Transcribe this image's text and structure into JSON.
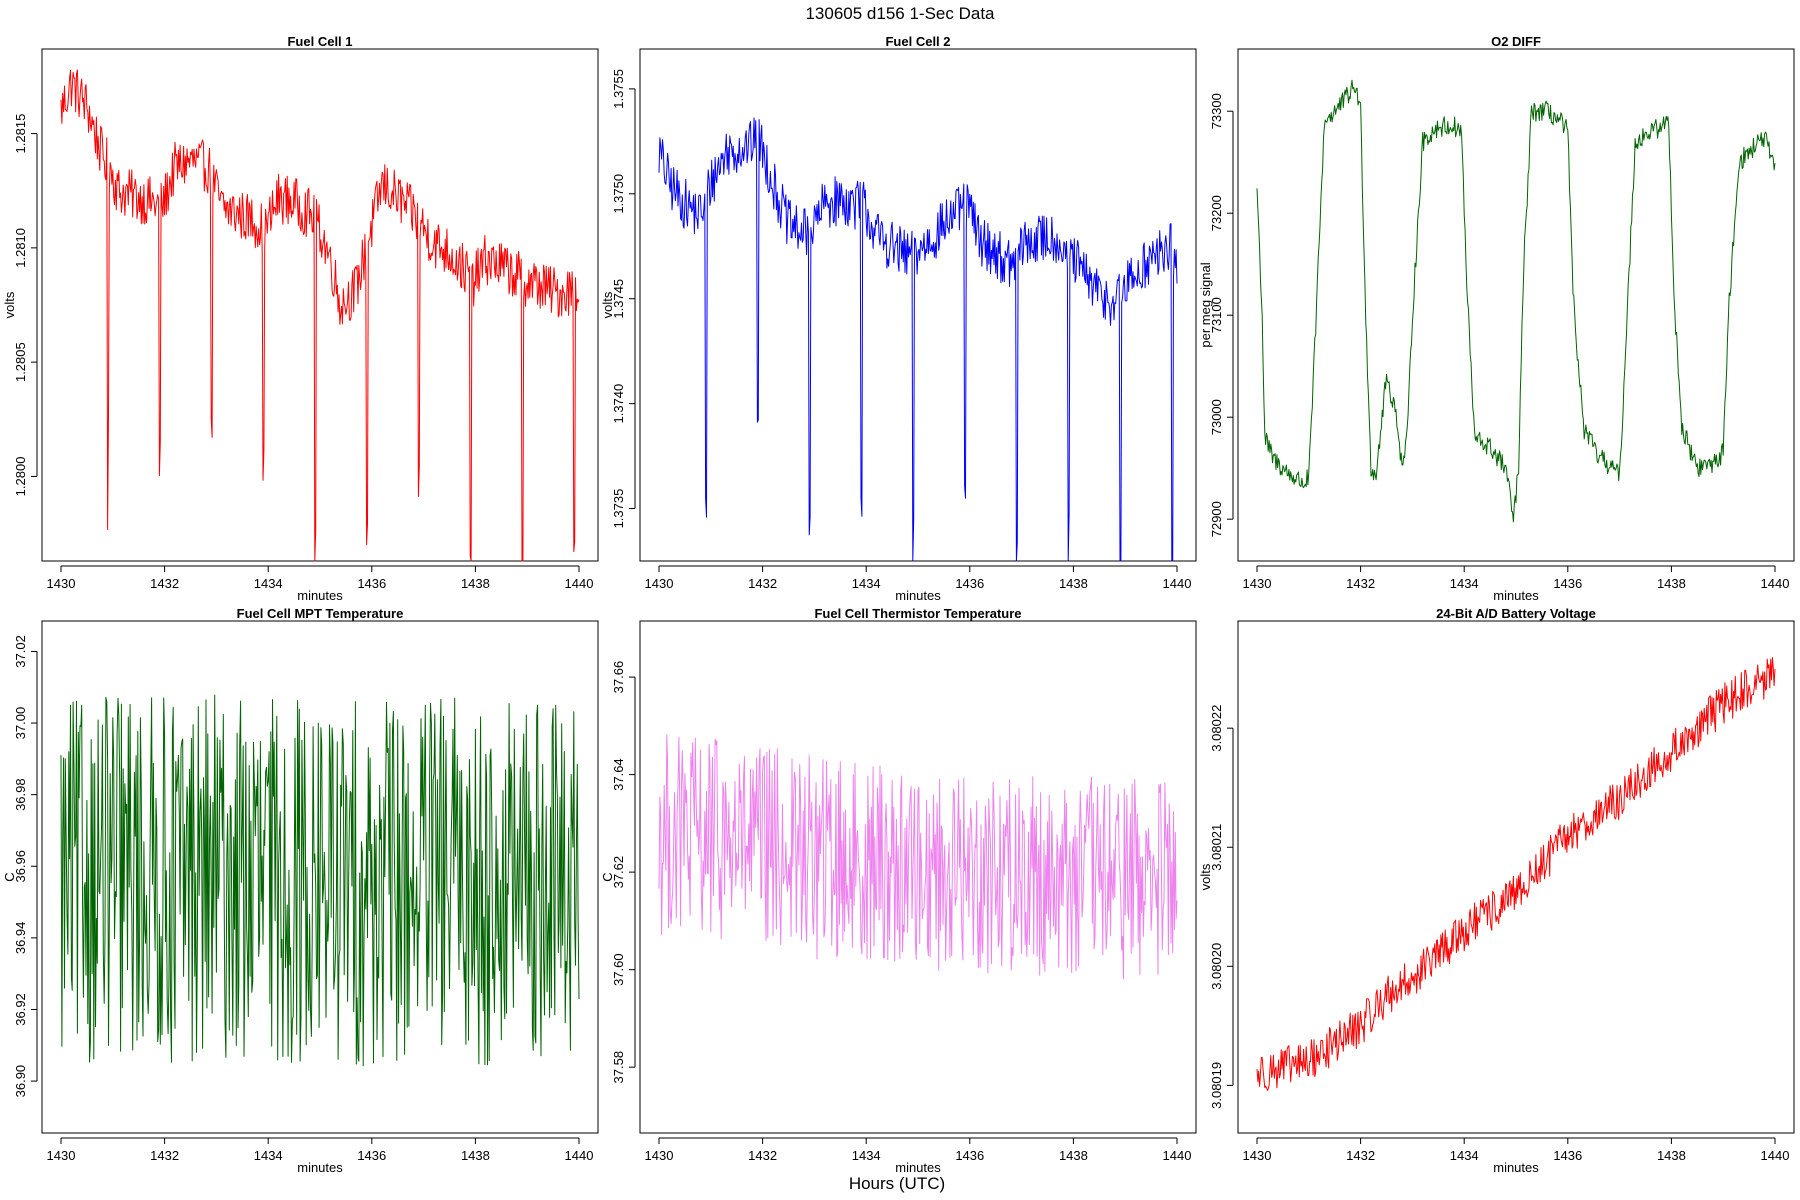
{
  "figure": {
    "title": "130605   d156   1-Sec Data",
    "xlabel": "Hours (UTC)"
  },
  "chart_data": [
    {
      "type": "line",
      "title": "Fuel Cell 1",
      "xlabel": "minutes",
      "ylabel": "volts",
      "color": "#ff0000",
      "xlim": [
        1430,
        1440
      ],
      "ylim": [
        1.27963,
        1.28187
      ],
      "xticks": [
        1430,
        1432,
        1434,
        1436,
        1438,
        1440
      ],
      "xtick_labels": [
        "1430",
        "1432",
        "1434",
        "1436",
        "1438",
        "1440"
      ],
      "yticks": [
        1.28,
        1.2805,
        1.281,
        1.2815
      ],
      "ytick_labels": [
        "1.2800",
        "1.2805",
        "1.2810",
        "1.2815"
      ],
      "series": [
        {
          "x": [
            1430,
            1430.2,
            1430.5,
            1430.8,
            1430.95,
            1431.1,
            1431.5,
            1431.75,
            1431.95,
            1432.2,
            1432.5,
            1432.85,
            1433.1,
            1433.4,
            1433.7,
            1433.95,
            1434.2,
            1434.5,
            1434.8,
            1435.0,
            1435.2,
            1435.4,
            1435.7,
            1435.95,
            1436.2,
            1436.5,
            1436.8,
            1436.95,
            1437.2,
            1437.5,
            1437.8,
            1437.95,
            1438.2,
            1438.5,
            1438.8,
            1439.0,
            1439.3,
            1439.6,
            1439.85,
            1440
          ],
          "y": [
            1.2816,
            1.28172,
            1.28162,
            1.2814,
            1.28135,
            1.28125,
            1.28122,
            1.2812,
            1.28118,
            1.28135,
            1.28138,
            1.28135,
            1.28118,
            1.28115,
            1.28112,
            1.28108,
            1.28122,
            1.2812,
            1.28115,
            1.28108,
            1.28095,
            1.28075,
            1.28082,
            1.28105,
            1.28128,
            1.28122,
            1.28115,
            1.2811,
            1.28102,
            1.28098,
            1.2809,
            1.28085,
            1.28095,
            1.28092,
            1.28088,
            1.28085,
            1.28083,
            1.2808,
            1.28082,
            1.2808
          ]
        }
      ]
    },
    {
      "type": "line",
      "title": "Fuel Cell 2",
      "xlabel": "minutes",
      "ylabel": "volts",
      "color": "#0000ff",
      "xlim": [
        1430,
        1440
      ],
      "ylim": [
        1.37325,
        1.37569
      ],
      "xticks": [
        1430,
        1432,
        1434,
        1436,
        1438,
        1440
      ],
      "xtick_labels": [
        "1430",
        "1432",
        "1434",
        "1436",
        "1438",
        "1440"
      ],
      "yticks": [
        1.3735,
        1.374,
        1.3745,
        1.375,
        1.3755
      ],
      "ytick_labels": [
        "1.3735",
        "1.3740",
        "1.3745",
        "1.3750",
        "1.3755"
      ],
      "series": [
        {
          "x": [
            1430,
            1430.2,
            1430.5,
            1430.8,
            1431.0,
            1431.3,
            1431.6,
            1431.95,
            1432.2,
            1432.5,
            1432.9,
            1433.2,
            1433.5,
            1433.8,
            1433.95,
            1434.2,
            1434.5,
            1434.8,
            1435.0,
            1435.3,
            1435.6,
            1435.95,
            1436.2,
            1436.5,
            1436.8,
            1437.0,
            1437.3,
            1437.6,
            1437.95,
            1438.2,
            1438.5,
            1438.8,
            1439.0,
            1439.3,
            1439.6,
            1439.9,
            1440
          ],
          "y": [
            1.3752,
            1.37505,
            1.37495,
            1.3749,
            1.37505,
            1.3752,
            1.37522,
            1.37525,
            1.37505,
            1.37485,
            1.3748,
            1.37495,
            1.37497,
            1.37495,
            1.37495,
            1.3748,
            1.37475,
            1.3747,
            1.37472,
            1.3748,
            1.37488,
            1.37495,
            1.37478,
            1.37472,
            1.37465,
            1.37475,
            1.37478,
            1.3748,
            1.3747,
            1.37462,
            1.37452,
            1.37448,
            1.37455,
            1.37465,
            1.3747,
            1.37475,
            1.37465
          ]
        }
      ]
    },
    {
      "type": "line",
      "title": "O2 DIFF",
      "xlabel": "minutes",
      "ylabel": "per meg signal",
      "color": "#006400",
      "xlim": [
        1430,
        1440
      ],
      "ylim": [
        72859,
        73361
      ],
      "xticks": [
        1430,
        1432,
        1434,
        1436,
        1438,
        1440
      ],
      "xtick_labels": [
        "1430",
        "1432",
        "1434",
        "1436",
        "1438",
        "1440"
      ],
      "yticks": [
        72900,
        73000,
        73100,
        73200,
        73300
      ],
      "ytick_labels": [
        "72900",
        "73000",
        "73100",
        "73200",
        "73300"
      ],
      "series": [
        {
          "x": [
            1430,
            1430.1,
            1430.15,
            1430.3,
            1430.6,
            1430.9,
            1431.0,
            1431.1,
            1431.3,
            1431.6,
            1431.9,
            1432.0,
            1432.1,
            1432.2,
            1432.3,
            1432.5,
            1432.7,
            1432.8,
            1432.9,
            1433.0,
            1433.2,
            1433.5,
            1433.8,
            1433.95,
            1434.05,
            1434.2,
            1434.5,
            1434.8,
            1434.95,
            1435.05,
            1435.15,
            1435.3,
            1435.6,
            1435.85,
            1436.0,
            1436.1,
            1436.3,
            1436.6,
            1436.9,
            1437.0,
            1437.1,
            1437.3,
            1437.6,
            1437.8,
            1437.95,
            1438.05,
            1438.2,
            1438.5,
            1438.8,
            1439.0,
            1439.1,
            1439.3,
            1439.6,
            1439.8,
            1440
          ],
          "y": [
            73225,
            73100,
            72980,
            72960,
            72945,
            72935,
            72940,
            73050,
            73290,
            73305,
            73325,
            73300,
            73100,
            72950,
            72945,
            73040,
            73000,
            72950,
            72980,
            73100,
            73270,
            73285,
            73285,
            73280,
            73130,
            72980,
            72970,
            72950,
            72900,
            72950,
            73150,
            73300,
            73300,
            73290,
            73280,
            73120,
            72990,
            72960,
            72950,
            72940,
            73050,
            73270,
            73280,
            73285,
            73290,
            73120,
            72990,
            72950,
            72955,
            72965,
            73100,
            73250,
            73265,
            73275,
            73240
          ]
        }
      ]
    },
    {
      "type": "line",
      "title": "Fuel Cell MPT Temperature",
      "xlabel": "minutes",
      "ylabel": "C",
      "color": "#006400",
      "xlim": [
        1430,
        1440
      ],
      "ylim": [
        36.8855,
        37.0285
      ],
      "xticks": [
        1430,
        1432,
        1434,
        1436,
        1438,
        1440
      ],
      "xtick_labels": [
        "1430",
        "1432",
        "1434",
        "1436",
        "1438",
        "1440"
      ],
      "yticks": [
        36.9,
        36.92,
        36.94,
        36.96,
        36.98,
        37.0,
        37.02
      ],
      "ytick_labels": [
        "36.90",
        "36.92",
        "36.94",
        "36.96",
        "36.98",
        "37.00",
        "37.02"
      ],
      "series": [
        {
          "x": [
            1430,
            1431,
            1432,
            1433,
            1434,
            1435,
            1436,
            1437,
            1438,
            1439,
            1440
          ],
          "y": [
            36.955,
            36.958,
            36.956,
            36.957,
            36.955,
            36.956,
            36.954,
            36.957,
            36.956,
            36.955,
            36.956
          ]
        }
      ]
    },
    {
      "type": "line",
      "title": "Fuel Cell Thermistor Temperature",
      "xlabel": "minutes",
      "ylabel": "C",
      "color": "#ee82ee",
      "xlim": [
        1430,
        1440
      ],
      "ylim": [
        37.5665,
        37.6715
      ],
      "xticks": [
        1430,
        1432,
        1434,
        1436,
        1438,
        1440
      ],
      "xtick_labels": [
        "1430",
        "1432",
        "1434",
        "1436",
        "1438",
        "1440"
      ],
      "yticks": [
        37.58,
        37.6,
        37.62,
        37.64,
        37.66
      ],
      "ytick_labels": [
        "37.58",
        "37.60",
        "37.62",
        "37.64",
        "37.66"
      ],
      "series": [
        {
          "x": [
            1430,
            1431,
            1432,
            1433,
            1434,
            1435,
            1436,
            1437,
            1438,
            1439,
            1440
          ],
          "y": [
            37.628,
            37.627,
            37.625,
            37.623,
            37.622,
            37.621,
            37.62,
            37.62,
            37.619,
            37.619,
            37.618
          ]
        }
      ]
    },
    {
      "type": "line",
      "title": "24-Bit A/D Battery Voltage",
      "xlabel": "minutes",
      "ylabel": "volts",
      "color": "#ff0000",
      "xlim": [
        1430,
        1440
      ],
      "ylim": [
        3.080186,
        3.080229
      ],
      "xticks": [
        1430,
        1432,
        1434,
        1436,
        1438,
        1440
      ],
      "xtick_labels": [
        "1430",
        "1432",
        "1434",
        "1436",
        "1438",
        "1440"
      ],
      "yticks": [
        3.08019,
        3.0802,
        3.08021,
        3.08022
      ],
      "ytick_labels": [
        "3.08019",
        "3.08020",
        "3.08021",
        "3.08022"
      ],
      "series": [
        {
          "x": [
            1430,
            1430.5,
            1431,
            1431.5,
            1432,
            1432.5,
            1433,
            1433.5,
            1434,
            1434.5,
            1435,
            1435.5,
            1436,
            1436.5,
            1437,
            1437.5,
            1438,
            1438.5,
            1439,
            1439.5,
            1440
          ],
          "y": [
            3.080191,
            3.0801915,
            3.080192,
            3.0801935,
            3.080195,
            3.0801975,
            3.080199,
            3.080201,
            3.080203,
            3.0802045,
            3.080206,
            3.0802085,
            3.080211,
            3.0802125,
            3.080214,
            3.080216,
            3.080218,
            3.08022,
            3.080222,
            3.0802235,
            3.0802245
          ]
        }
      ]
    }
  ]
}
